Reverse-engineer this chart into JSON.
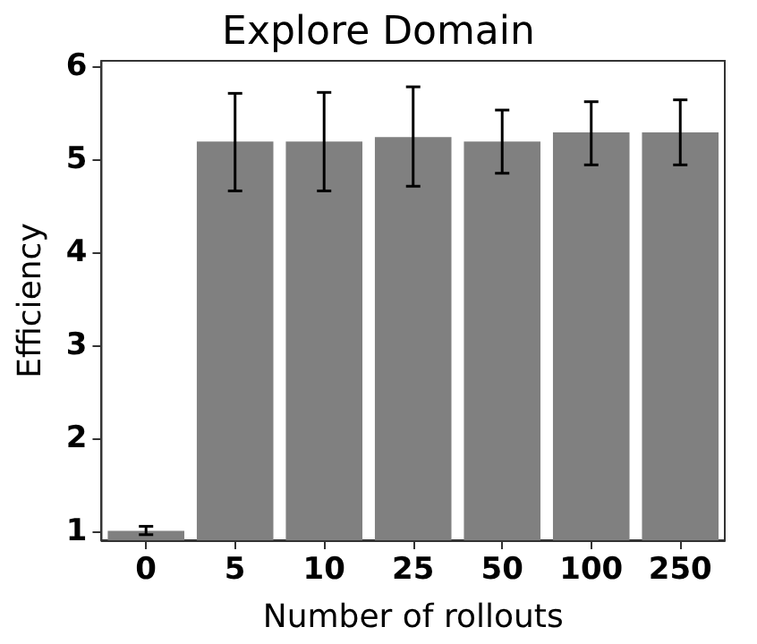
{
  "chart_data": {
    "type": "bar",
    "title": "Explore Domain",
    "xlabel": "Number of rollouts",
    "ylabel": "Efficiency",
    "categories": [
      "0",
      "5",
      "10",
      "25",
      "50",
      "100",
      "250"
    ],
    "values": [
      1.0,
      5.19,
      5.19,
      5.24,
      5.19,
      5.29,
      5.29
    ],
    "errors": [
      [
        0.96,
        1.05
      ],
      [
        4.66,
        5.71
      ],
      [
        4.66,
        5.72
      ],
      [
        4.71,
        5.78
      ],
      [
        4.85,
        5.53
      ],
      [
        4.94,
        5.62
      ],
      [
        4.94,
        5.64
      ]
    ],
    "color": "#808080",
    "ylim": [
      0.9,
      6.06
    ],
    "yticks": [
      1,
      2,
      3,
      4,
      5,
      6
    ],
    "grid": false
  }
}
